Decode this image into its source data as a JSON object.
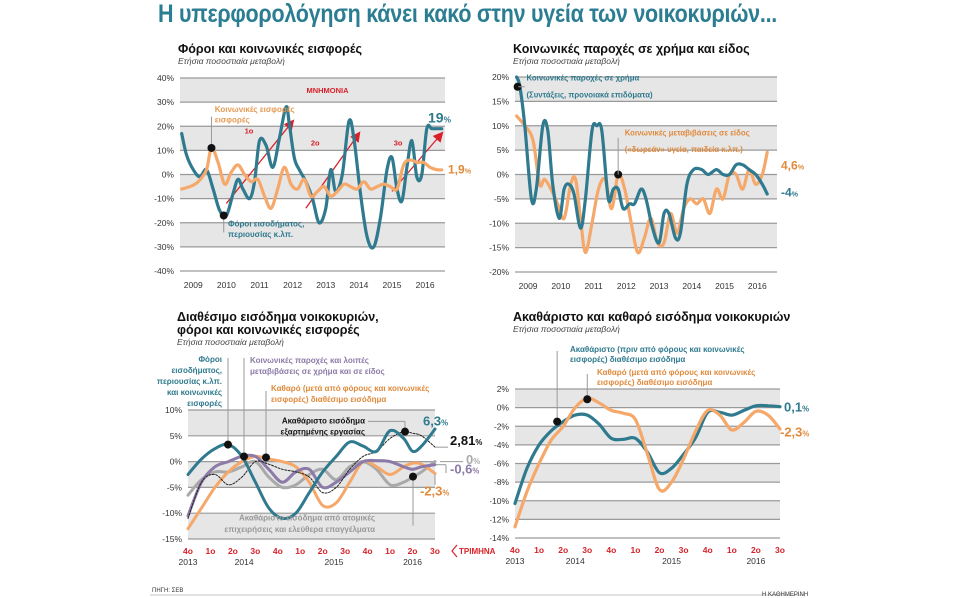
{
  "page_title": "Η υπερφορολόγηση κάνει κακό στην υγεία των νοικοκυριών...",
  "footer": {
    "source": "ΠΗΓΗ: ΣΕΒ",
    "brand": "Η ΚΑΘΗΜΕΡΙΝΗ"
  },
  "colors": {
    "teal": "#2f7a8e",
    "orange": "#f5a86a",
    "purple": "#8c7aa8",
    "gray": "#a9a9a9",
    "red": "#d8212a",
    "band": "#e6e6e6",
    "title": "#2b7d91"
  },
  "chart_data": [
    {
      "id": "taxes",
      "type": "line",
      "title": "Φόροι και κοινωνικές εισφορές",
      "subtitle": "Ετήσια ποσοστιαία μεταβολή",
      "ylim": [
        -40,
        40
      ],
      "yticks": [
        "40%",
        "30%",
        "20%",
        "10%",
        "0%",
        "-10%",
        "-20%",
        "-30%",
        "-40%"
      ],
      "ytick_values": [
        40,
        30,
        20,
        10,
        0,
        -10,
        -20,
        -30,
        -40
      ],
      "xticks": [
        "2009",
        "2010",
        "2011",
        "2012",
        "2013",
        "2014",
        "2015",
        "2016"
      ],
      "xrange": [
        2008.6,
        2016.6
      ],
      "grid": true,
      "band_label": "ΜΝΗΜΟΝΙΑ",
      "memoranda": [
        {
          "label": "1ο",
          "from": [
            2010.0,
            -12
          ],
          "to": [
            2012.0,
            22
          ]
        },
        {
          "label": "2ο",
          "from": [
            2012.4,
            -14
          ],
          "to": [
            2014.0,
            17
          ]
        },
        {
          "label": "3ο",
          "from": [
            2015.0,
            -7
          ],
          "to": [
            2016.5,
            17
          ]
        }
      ],
      "series": [
        {
          "name": "Φόροι εισοδήματος, περιουσίας κ.λπ.",
          "color": "teal",
          "end_label": "19%",
          "x": [
            2008.65,
            2008.8,
            2009.0,
            2009.2,
            2009.4,
            2009.6,
            2009.8,
            2010.0,
            2010.2,
            2010.35,
            2010.5,
            2010.7,
            2010.85,
            2011.0,
            2011.2,
            2011.4,
            2011.6,
            2011.8,
            2011.9,
            2012.05,
            2012.2,
            2012.4,
            2012.6,
            2012.8,
            2013.0,
            2013.15,
            2013.3,
            2013.5,
            2013.7,
            2013.85,
            2014.05,
            2014.25,
            2014.45,
            2014.65,
            2014.85,
            2015.0,
            2015.15,
            2015.3,
            2015.45,
            2015.6,
            2015.75,
            2015.9,
            2016.05,
            2016.2,
            2016.35,
            2016.5
          ],
          "y": [
            17,
            8,
            2,
            -1,
            2,
            -6,
            -15,
            -17,
            -8,
            -2,
            -6,
            -10,
            -3,
            14,
            12,
            3,
            15,
            28,
            21,
            7,
            2,
            -3,
            -10,
            -20,
            -14,
            2,
            -7,
            0,
            22,
            15,
            -8,
            -26,
            -30,
            -18,
            2,
            7,
            -6,
            -11,
            3,
            14,
            -1,
            0,
            19,
            19,
            19,
            19
          ]
        },
        {
          "name": "Κοινωνικές εισφορές",
          "color": "orange",
          "end_label": "1,9%",
          "x": [
            2008.65,
            2008.9,
            2009.15,
            2009.4,
            2009.55,
            2009.75,
            2009.95,
            2010.15,
            2010.35,
            2010.55,
            2010.75,
            2010.95,
            2011.15,
            2011.35,
            2011.55,
            2011.75,
            2011.95,
            2012.15,
            2012.35,
            2012.55,
            2012.75,
            2012.95,
            2013.15,
            2013.35,
            2013.55,
            2013.75,
            2013.95,
            2014.15,
            2014.35,
            2014.55,
            2014.75,
            2014.95,
            2015.15,
            2015.35,
            2015.55,
            2015.75,
            2015.95,
            2016.15,
            2016.35,
            2016.5
          ],
          "y": [
            -6,
            -5,
            -3,
            2,
            11,
            5,
            -4,
            1,
            4,
            0,
            -3,
            -2,
            -9,
            -14,
            -6,
            3,
            -4,
            -6,
            -2,
            -9,
            -7,
            -5,
            -9,
            -7,
            -4,
            -5,
            -6,
            -3,
            -6,
            -5,
            -4,
            -5,
            -6,
            4,
            6,
            5,
            5,
            3,
            2,
            1.9
          ]
        }
      ],
      "annotations": [
        "Κοινωνικές εισφορές",
        "Φόροι εισοδήματος, περιουσίας κ.λπ."
      ]
    },
    {
      "id": "benefits",
      "type": "line",
      "title": "Κοινωνικές παροχές σε χρήμα και είδος",
      "subtitle": "Ετήσια ποσοστιαία μεταβολή",
      "ylim": [
        -20,
        20
      ],
      "yticks": [
        "20%",
        "15%",
        "10%",
        "5%",
        "0%",
        "-5%",
        "-10%",
        "-15%",
        "-20%"
      ],
      "ytick_values": [
        20,
        15,
        10,
        5,
        0,
        -5,
        -10,
        -15,
        -20
      ],
      "xticks": [
        "2009",
        "2010",
        "2011",
        "2012",
        "2013",
        "2014",
        "2015",
        "2016"
      ],
      "xrange": [
        2008.6,
        2016.6
      ],
      "grid": true,
      "series": [
        {
          "name": "Κοινωνικές παροχές σε χρήμα (Συντάξεις, προνοιακά επιδόματα)",
          "color": "teal",
          "end_label": "-4%",
          "x": [
            2008.65,
            2008.75,
            2008.9,
            2009.1,
            2009.25,
            2009.45,
            2009.6,
            2009.75,
            2009.95,
            2010.1,
            2010.25,
            2010.4,
            2010.6,
            2010.75,
            2010.95,
            2011.1,
            2011.25,
            2011.45,
            2011.6,
            2011.75,
            2011.9,
            2012.1,
            2012.25,
            2012.45,
            2012.6,
            2012.8,
            2013.0,
            2013.15,
            2013.3,
            2013.5,
            2013.65,
            2013.85,
            2014.05,
            2014.3,
            2014.5,
            2014.75,
            2014.95,
            2015.15,
            2015.35,
            2015.55,
            2015.75,
            2015.95,
            2016.15,
            2016.3
          ],
          "y": [
            20,
            18,
            10,
            -5,
            -3,
            10,
            9,
            -2,
            -9,
            -3,
            -2,
            -4,
            -11,
            -5,
            9,
            10,
            9,
            -5,
            -3,
            -3,
            -7,
            -6,
            -6,
            -3,
            -5,
            -11,
            -14,
            -8,
            -8,
            -13,
            -12,
            -2,
            1,
            1,
            0,
            1,
            0,
            0,
            2,
            2,
            1,
            0,
            -2,
            -4
          ]
        },
        {
          "name": "Κοινωνικές μεταβιβάσεις σε είδος («δωρεάν» υγεία, παιδεία κ.λπ.)",
          "color": "orange",
          "end_label": "4,6%",
          "x": [
            2008.65,
            2008.9,
            2009.15,
            2009.35,
            2009.5,
            2009.7,
            2009.9,
            2010.1,
            2010.3,
            2010.45,
            2010.6,
            2010.75,
            2010.95,
            2011.15,
            2011.35,
            2011.55,
            2011.75,
            2011.95,
            2012.15,
            2012.35,
            2012.55,
            2012.75,
            2012.95,
            2013.15,
            2013.35,
            2013.55,
            2013.75,
            2013.95,
            2014.15,
            2014.35,
            2014.55,
            2014.75,
            2014.95,
            2015.15,
            2015.35,
            2015.55,
            2015.75,
            2015.95,
            2016.15,
            2016.3
          ],
          "y": [
            12,
            10,
            7,
            -2,
            -1,
            -3,
            -6,
            -9,
            -2,
            -1,
            -9,
            -16,
            -10,
            -3,
            -1,
            -7,
            0,
            -3,
            -10,
            -16,
            -13,
            -9,
            -14,
            -14,
            -8,
            -12,
            -7,
            -5,
            -6,
            -5,
            -8,
            -3,
            -5,
            0,
            0,
            -3,
            1,
            -2,
            0,
            4.6
          ]
        }
      ],
      "annotations": [
        "Κοινωνικές παροχές σε χρήμα",
        "(Συντάξεις, προνοιακά επιδόματα)",
        "Κοινωνικές μεταβιβάσεις σε είδος",
        "(«δωρεάν» υγεία, παιδεία κ.λπ.)"
      ]
    },
    {
      "id": "disposable",
      "type": "line",
      "title": "Διαθέσιμο εισόδημα νοικοκυριών,",
      "title2": "φόροι και κοινωνικές εισφορές",
      "subtitle": "Ετήσια ποσοστιαία μεταβολή",
      "ylim": [
        -15,
        10
      ],
      "yticks": [
        "10%",
        "5%",
        "0%",
        "-5%",
        "-10%",
        "-15%"
      ],
      "ytick_values": [
        10,
        5,
        0,
        -5,
        -10,
        -15
      ],
      "categories": [
        "4ο",
        "1ο",
        "2ο",
        "3ο",
        "4ο",
        "1ο",
        "2ο",
        "3ο",
        "4ο",
        "1ο",
        "2ο",
        "3ο"
      ],
      "years": [
        {
          "label": "2013",
          "at": 0
        },
        {
          "label": "2014",
          "at": 2.5
        },
        {
          "label": "2015",
          "at": 6.5
        },
        {
          "label": "2016",
          "at": 10
        }
      ],
      "quarter_label": "ΤΡΙΜΗΝΑ",
      "grid": true,
      "series": [
        {
          "name": "Φόροι εισοδήματος, περιουσίας κ.λπ. και κοινωνικές εισφορές",
          "color": "teal",
          "end_label": "6,3%",
          "width": 3,
          "x": [
            0,
            0.6,
            1.2,
            1.8,
            2.4,
            3,
            3.6,
            4.2,
            4.8,
            5.4,
            6,
            6.6,
            7.2,
            7.8,
            8.4,
            9,
            9.6,
            10,
            10.4,
            11
          ],
          "y": [
            -2.5,
            0.5,
            2.5,
            3.3,
            1,
            -4,
            -9,
            -11,
            -10,
            -6,
            -2,
            1,
            3.8,
            3,
            2,
            6,
            4.5,
            2,
            3,
            6.3
          ]
        },
        {
          "name": "Ακαθάριστο εισόδημα από ατομικές επιχειρήσεις και ελεύθερα επαγγέλματα",
          "color": "gray",
          "end_label": "0%",
          "width": 3,
          "x": [
            0,
            0.6,
            1.2,
            1.8,
            2.4,
            3,
            3.6,
            4.2,
            4.8,
            5.4,
            6,
            6.6,
            7.2,
            7.8,
            8.4,
            9,
            9.6,
            10,
            10.4,
            11
          ],
          "y": [
            -6.5,
            -3.5,
            -2,
            -2,
            -1,
            0,
            -3,
            -5,
            -4.5,
            -2.5,
            -1.5,
            -3.5,
            -1,
            0,
            -1.5,
            -4.5,
            -4,
            -3,
            -2,
            0
          ]
        },
        {
          "name": "Καθαρό (μετά από φόρους και κοινωνικές εισφορές) διαθέσιμο εισόδημα",
          "color": "orange",
          "end_label": "-2,3%",
          "width": 3,
          "x": [
            0,
            0.6,
            1.2,
            1.8,
            2.4,
            3,
            3.6,
            4.2,
            4.8,
            5.4,
            6,
            6.6,
            7.2,
            7.8,
            8.4,
            9,
            9.6,
            10,
            10.4,
            11
          ],
          "y": [
            -13,
            -9,
            -5,
            -2,
            0,
            1,
            0.5,
            0,
            -1,
            -4,
            -8.5,
            -8,
            -4,
            0,
            -1,
            -2.5,
            -1,
            -0.3,
            -0.5,
            -2.3
          ]
        },
        {
          "name": "Κοινωνικές παροχές και λοιπές μεταβιβάσεις σε χρήμα και σε είδος",
          "color": "purple",
          "end_label": "-0,6%",
          "width": 3,
          "x": [
            0,
            0.6,
            1.2,
            1.8,
            2.4,
            3,
            3.6,
            4.2,
            4.8,
            5.4,
            6,
            6.6,
            7.2,
            7.8,
            8.4,
            9,
            9.6,
            10,
            10.4,
            11
          ],
          "y": [
            -10.5,
            -4,
            -1,
            0,
            1,
            1,
            -1.5,
            -4,
            -2,
            -1.5,
            -5,
            -4,
            -2,
            0,
            0.2,
            0,
            -1,
            -1.5,
            -1,
            -0.6
          ]
        },
        {
          "name": "Ακαθάριστο εισόδημα εξαρτημένης εργασίας",
          "color": "black",
          "end_label": "2,81%",
          "dashed": true,
          "width": 1,
          "x": [
            0,
            0.6,
            1.2,
            1.8,
            2.4,
            3,
            3.6,
            4.2,
            4.8,
            5.4,
            6,
            6.6,
            7.2,
            7.8,
            8.4,
            9,
            9.6,
            10,
            10.4,
            11
          ],
          "y": [
            -11,
            -4,
            -2.5,
            -4.5,
            -3,
            0,
            -0.5,
            -1.5,
            -2,
            -3,
            -6,
            -5,
            -1.5,
            1,
            2,
            4.5,
            5.8,
            5.5,
            5,
            2.81
          ]
        }
      ],
      "annotations": [
        "Φόροι",
        "εισοδήματος,",
        "περιουσίας κ.λπ.",
        "και κοινωνικές",
        "εισφορές",
        "Κοινωνικές παροχές και λοιπές",
        "μεταβιβάσεις σε χρήμα και σε είδος",
        "Καθαρό (μετά από φόρους και κοινωνικές",
        "εισφορές) διαθέσιμο εισόδημα",
        "Ακαθάριστο εισόδημα",
        "εξαρτημένης εργασίας",
        "Ακαθάριστο εισόδημα από ατομικές",
        "επιχειρήσεις και ελεύθερα επαγγέλματα"
      ]
    },
    {
      "id": "gross-net",
      "type": "line",
      "title": "Ακαθάριστο και καθαρό εισόδημα νοικοκυριών",
      "subtitle": "Ετήσια ποσοστιαία μεταβολή",
      "ylim": [
        -14,
        2
      ],
      "yticks": [
        "2%",
        "0%",
        "-2%",
        "-4%",
        "-6%",
        "-8%",
        "-10%",
        "-12%",
        "-14%"
      ],
      "ytick_values": [
        2,
        0,
        -2,
        -4,
        -6,
        -8,
        -10,
        -12,
        -14
      ],
      "categories": [
        "4ο",
        "1ο",
        "2ο",
        "3ο",
        "4ο",
        "1ο",
        "2ο",
        "3ο",
        "4ο",
        "1ο",
        "2ο",
        "3ο"
      ],
      "years": [
        {
          "label": "2013",
          "at": 0
        },
        {
          "label": "2014",
          "at": 2.5
        },
        {
          "label": "2015",
          "at": 6.5
        },
        {
          "label": "2016",
          "at": 10
        }
      ],
      "grid": true,
      "series": [
        {
          "name": "Ακαθάριστο (πριν από φόρους και κοινωνικές εισφορές) διαθέσιμο εισόδημα",
          "color": "teal",
          "end_label": "0,1%",
          "x": [
            0,
            0.5,
            1,
            1.5,
            2,
            2.5,
            3,
            3.5,
            4,
            4.5,
            5,
            5.5,
            6,
            6.5,
            7,
            7.5,
            8,
            8.5,
            9,
            9.5,
            10,
            10.5,
            11
          ],
          "y": [
            -10.3,
            -6.5,
            -4,
            -2.5,
            -1.5,
            -0.8,
            -0.8,
            -1.8,
            -3.3,
            -3.4,
            -3.3,
            -4.8,
            -7,
            -6.5,
            -5,
            -3.2,
            -0.5,
            -0.5,
            -0.8,
            -0.3,
            0.2,
            0.2,
            0.1
          ]
        },
        {
          "name": "Καθαρό (μετά από φόρους και κοινωνικές εισφορές) διαθέσιμο εισόδημα",
          "color": "orange",
          "end_label": "-2,3%",
          "x": [
            0,
            0.5,
            1,
            1.5,
            2,
            2.5,
            3,
            3.5,
            4,
            4.5,
            5,
            5.5,
            6,
            6.5,
            7,
            7.5,
            8,
            8.5,
            9,
            9.5,
            10,
            10.5,
            11
          ],
          "y": [
            -12.8,
            -9,
            -6,
            -3.5,
            -2,
            0,
            1,
            0.5,
            -0.3,
            -0.6,
            -1.3,
            -5,
            -8.8,
            -8,
            -5.5,
            -2.5,
            -0.3,
            -0.8,
            -2.4,
            -1.6,
            -0.4,
            -0.8,
            -2.3
          ]
        }
      ],
      "annotations": [
        "Ακαθάριστο (πριν από φόρους και κοινωνικές",
        "εισφορές) διαθέσιμο εισόδημα",
        "Καθαρό (μετά από φόρους και κοινωνικές",
        "εισφορές) διαθέσιμο εισόδημα"
      ]
    }
  ]
}
